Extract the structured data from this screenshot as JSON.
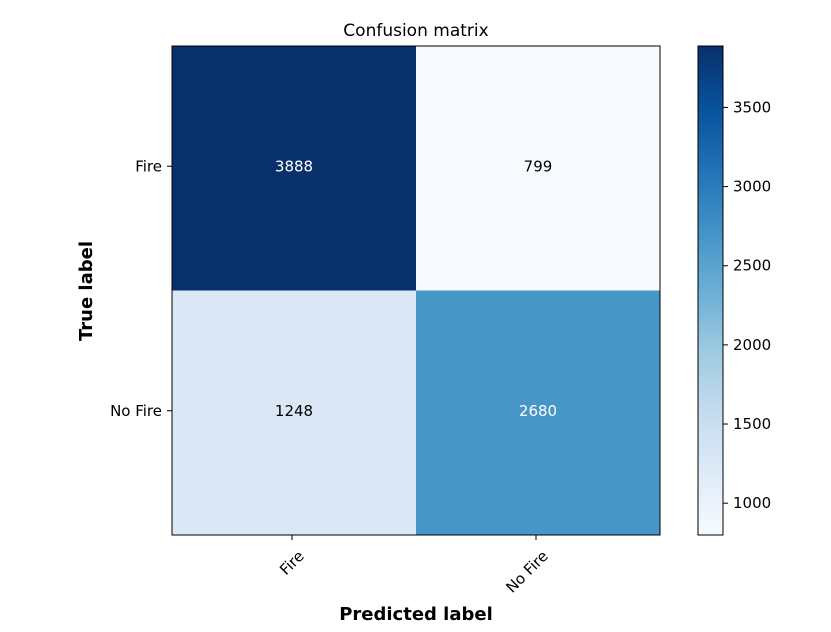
{
  "chart_data": {
    "type": "heatmap",
    "title": "Confusion matrix",
    "xlabel": "Predicted label",
    "ylabel": "True label",
    "x_categories": [
      "Fire",
      "No Fire"
    ],
    "y_categories": [
      "Fire",
      "No Fire"
    ],
    "values": [
      [
        3888,
        799
      ],
      [
        1248,
        2680
      ]
    ],
    "colormap": "Blues",
    "color_range": [
      799,
      3888
    ],
    "colorbar_ticks": [
      1000,
      1500,
      2000,
      2500,
      3000,
      3500
    ],
    "colorbar_tick_labels": [
      "1000",
      "1500",
      "2000",
      "2500",
      "3000",
      "3500"
    ],
    "x_tick_rotation_deg": 45
  }
}
